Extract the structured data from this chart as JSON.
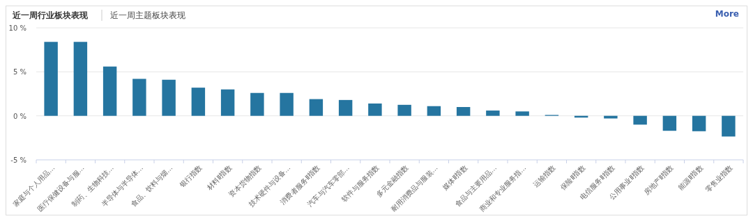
{
  "chart_data": {
    "type": "bar",
    "title": "近一周行业板块表现",
    "subtitle": "近一周主题板块表现",
    "annotations": [
      "More"
    ],
    "categories": [
      "家庭与个人用品...",
      "医疗保健设备与服...",
      "制药、生物科技...",
      "半导体与半导体...",
      "食品、饮料与烟...",
      "银行指数",
      "材料Ⅱ指数",
      "资本货物指数",
      "技术硬件与设备...",
      "消费者服务Ⅱ指数",
      "汽车与汽车零部...",
      "软件与服务指数",
      "多元金融指数",
      "耐用消费品与服装...",
      "媒体Ⅱ指数",
      "食品与主要用品...",
      "商业和专业服务指...",
      "运输指数",
      "保险Ⅱ指数",
      "电信服务Ⅱ指数",
      "公用事业Ⅱ指数",
      "房地产Ⅱ指数",
      "能源Ⅱ指数",
      "零售业指数"
    ],
    "values": [
      8.4,
      8.4,
      5.6,
      4.2,
      4.1,
      3.2,
      3.0,
      2.6,
      2.6,
      1.9,
      1.8,
      1.4,
      1.25,
      1.1,
      1.0,
      0.6,
      0.5,
      0.1,
      -0.2,
      -0.3,
      -1.0,
      -1.7,
      -1.75,
      -2.35
    ],
    "color": "#2575a0",
    "ylim": [
      -5,
      10
    ],
    "yticks": [
      {
        "value": -5,
        "label": "-5 %"
      },
      {
        "value": 0,
        "label": "0 %"
      },
      {
        "value": 5,
        "label": "5 %"
      },
      {
        "value": 10,
        "label": "10 %"
      }
    ],
    "grid": "y"
  }
}
